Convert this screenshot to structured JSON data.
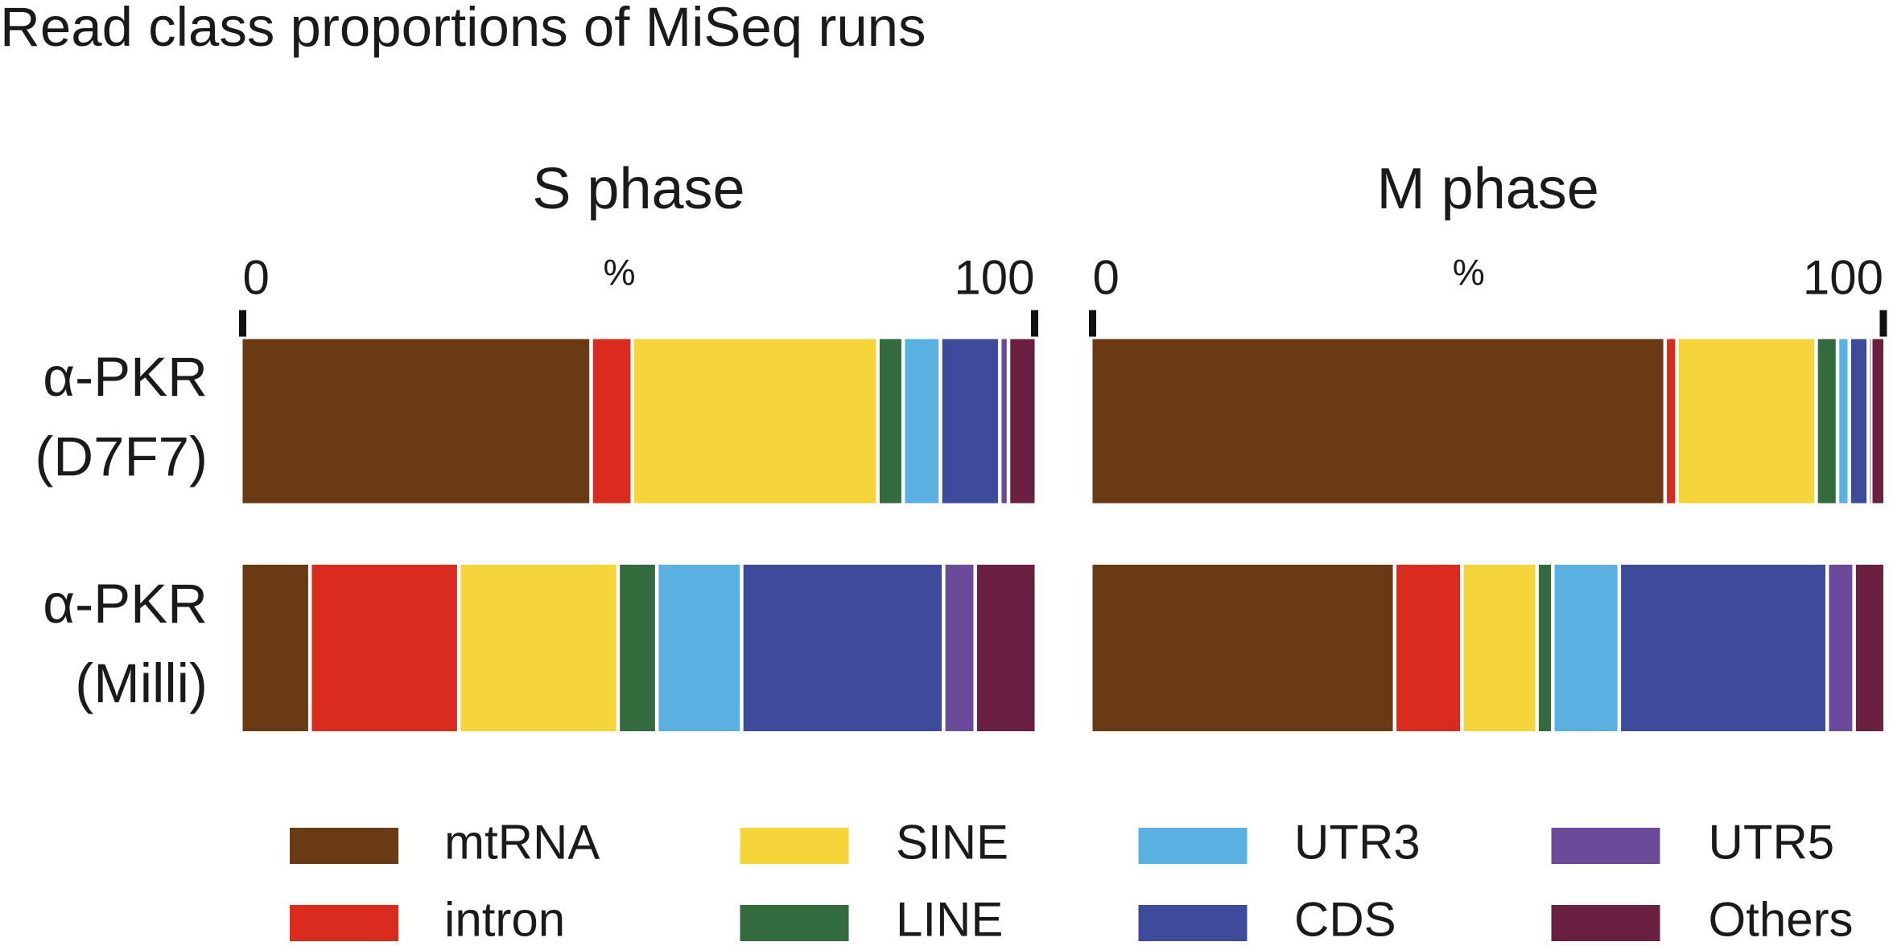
{
  "title": "Read class proportions of MiSeq runs",
  "chart_data": [
    {
      "type": "stacked-bar",
      "title": "S phase",
      "xlabel": "%",
      "xlim": [
        0,
        100
      ],
      "xticks": [
        0,
        100
      ],
      "categories": [
        "α-PKR (D7F7)",
        "α-PKR (Milli)"
      ],
      "series": [
        {
          "name": "mtRNA",
          "color": "#6a3a14",
          "values": [
            44,
            8.5
          ]
        },
        {
          "name": "intron",
          "color": "#d92b1e",
          "values": [
            5.2,
            18.8
          ]
        },
        {
          "name": "SINE",
          "color": "#f5d53a",
          "values": [
            31,
            20.1
          ]
        },
        {
          "name": "LINE",
          "color": "#336b3f",
          "values": [
            3.2,
            4.9
          ]
        },
        {
          "name": "UTR3",
          "color": "#5ab0e0",
          "values": [
            4.7,
            10.7
          ]
        },
        {
          "name": "CDS",
          "color": "#3e4a9a",
          "values": [
            7.5,
            25.5
          ]
        },
        {
          "name": "UTR5",
          "color": "#6b4a9a",
          "values": [
            1.1,
            4
          ]
        },
        {
          "name": "Others",
          "color": "#6a2040",
          "values": [
            3.3,
            7.5
          ]
        }
      ]
    },
    {
      "type": "stacked-bar",
      "title": "M phase",
      "xlabel": "%",
      "xlim": [
        0,
        100
      ],
      "xticks": [
        0,
        100
      ],
      "series": [
        {
          "color": "#6a3a14",
          "values": [
            72.4,
            38.2
          ]
        },
        {
          "color": "#d92b1e",
          "values": [
            1.5,
            8.5
          ]
        },
        {
          "color": "#f5d53a",
          "values": [
            17.6,
            9.5
          ]
        },
        {
          "color": "#336b3f",
          "values": [
            2.7,
            2
          ]
        },
        {
          "color": "#5ab0e0",
          "values": [
            1.5,
            8.4
          ]
        },
        {
          "color": "#3e4a9a",
          "values": [
            2.4,
            26.3
          ]
        },
        {
          "color": "#6b4a9a",
          "values": [
            0.3,
            3.4
          ]
        },
        {
          "color": "#6a2040",
          "values": [
            1.6,
            3.7
          ]
        }
      ]
    }
  ]
}
